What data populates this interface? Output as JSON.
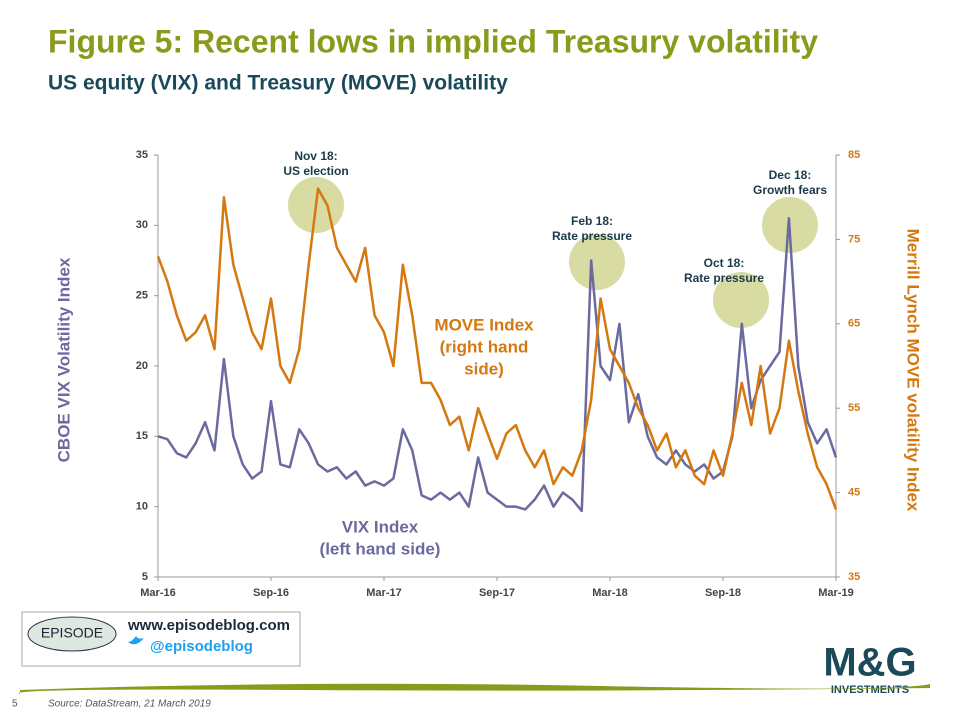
{
  "chart_data": {
    "type": "line",
    "title": "Figure 5: Recent lows in implied Treasury volatility",
    "subtitle": "US equity (VIX) and Treasury (MOVE) volatility",
    "ylabel": "CBOE VIX Volatility  Index",
    "y2label": "Merrill  Lynch MOVE volatility  Index",
    "categories": [
      "Mar-16",
      null,
      null,
      null,
      null,
      null,
      null,
      null,
      null,
      null,
      null,
      null,
      "Sep-16",
      null,
      null,
      null,
      null,
      null,
      null,
      null,
      null,
      null,
      null,
      null,
      "Mar-17",
      null,
      null,
      null,
      null,
      null,
      null,
      null,
      null,
      null,
      null,
      null,
      "Sep-17",
      null,
      null,
      null,
      null,
      null,
      null,
      null,
      null,
      null,
      null,
      null,
      "Mar-18",
      null,
      null,
      null,
      null,
      null,
      null,
      null,
      null,
      null,
      null,
      null,
      "Sep-18",
      null,
      null,
      null,
      null,
      null,
      null,
      null,
      null,
      null,
      null,
      null,
      "Mar-19"
    ],
    "ylim": [
      5,
      35
    ],
    "yticks": [
      5,
      10,
      15,
      20,
      25,
      30,
      35
    ],
    "y2lim": [
      35,
      85
    ],
    "y2ticks": [
      35,
      45,
      55,
      65,
      75,
      85
    ],
    "series": [
      {
        "name": "VIX Index",
        "color": "#6b6aa0",
        "axis": "y",
        "values": [
          15,
          14.8,
          13.8,
          13.5,
          14.5,
          16,
          14,
          20.5,
          15,
          13,
          12,
          12.5,
          17.5,
          13,
          12.8,
          15.5,
          14.5,
          13,
          12.5,
          12.8,
          12,
          12.5,
          11.5,
          11.8,
          11.5,
          12,
          15.5,
          14,
          10.8,
          10.5,
          11,
          10.5,
          11,
          10,
          13.5,
          11,
          10.5,
          10,
          10,
          9.8,
          10.5,
          11.5,
          10,
          11,
          10.5,
          9.7,
          27.5,
          20,
          19,
          23,
          16,
          18,
          15,
          13.5,
          13,
          14,
          13,
          12.5,
          13,
          12,
          12.5,
          15,
          23,
          17,
          19,
          20,
          21,
          30.5,
          20,
          16,
          14.5,
          15.5,
          13.5
        ]
      },
      {
        "name": "MOVE Index",
        "color": "#d4780f",
        "axis": "y2",
        "values": [
          73,
          70,
          66,
          63,
          64,
          66,
          62,
          80,
          72,
          68,
          64,
          62,
          68,
          60,
          58,
          62,
          72,
          81,
          79,
          74,
          72,
          70,
          74,
          66,
          64,
          60,
          72,
          66,
          58,
          58,
          56,
          53,
          54,
          50,
          55,
          52,
          49,
          52,
          53,
          50,
          48,
          50,
          46,
          48,
          47,
          50,
          56,
          68,
          62,
          60,
          58,
          55,
          53,
          50,
          52,
          48,
          50,
          47,
          46,
          50,
          47,
          52,
          58,
          53,
          60,
          52,
          55,
          63,
          57,
          52,
          48,
          46,
          43
        ]
      }
    ],
    "series_notes": [
      "(left hand side)",
      [
        "(right hand",
        "side)"
      ]
    ],
    "annotations": [
      [
        "Nov 18:",
        "US election"
      ],
      [
        "Feb 18:",
        "Rate pressure"
      ],
      [
        "Oct 18:",
        "Rate pressure"
      ],
      [
        "Dec 18:",
        "Growth fears"
      ]
    ],
    "footer": {
      "page": "5",
      "source": "Source: DataStream, 21 March 2019",
      "logo": "EPISODE",
      "website": "www.episodeblog.com",
      "twitter": "@episodeblog",
      "brand": "M&G",
      "brand_sub": "INVESTMENTS"
    }
  }
}
